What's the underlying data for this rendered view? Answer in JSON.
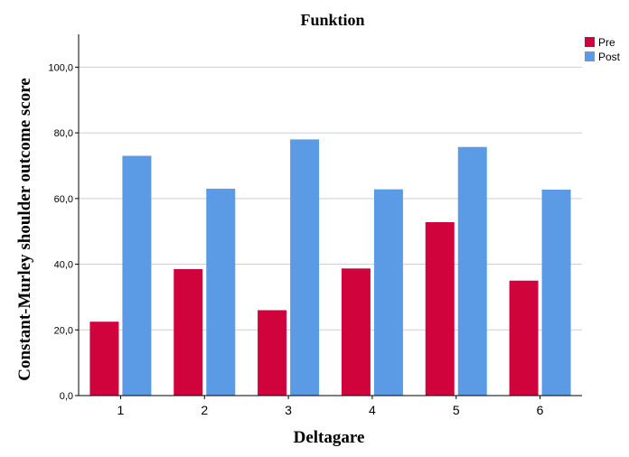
{
  "chart_data": {
    "type": "bar",
    "title": "Funktion",
    "xlabel": "Deltagare",
    "ylabel": "Constant-Murley shoulder outcome score",
    "categories": [
      "1",
      "2",
      "3",
      "4",
      "5",
      "6"
    ],
    "series": [
      {
        "name": "Pre",
        "color": "#d0033d",
        "values": [
          22.5,
          38.5,
          26.0,
          38.7,
          52.8,
          35.0
        ]
      },
      {
        "name": "Post",
        "color": "#5b9be6",
        "values": [
          73.0,
          63.0,
          78.0,
          62.8,
          75.7,
          62.7
        ]
      }
    ],
    "ylim": [
      0,
      110
    ],
    "yticks": [
      0,
      20,
      40,
      60,
      80,
      100
    ],
    "ytick_labels": [
      "0,0",
      "20,0",
      "40,0",
      "60,0",
      "80,0",
      "100,0"
    ],
    "grid": true,
    "legend": "top-right"
  }
}
